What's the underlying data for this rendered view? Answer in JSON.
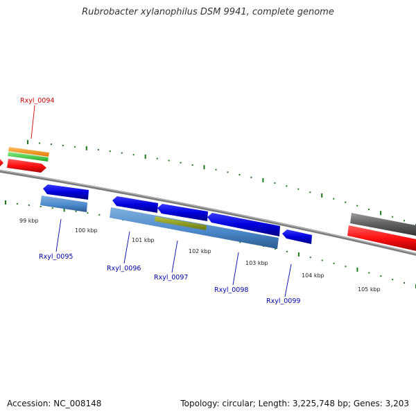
{
  "title": "Rubrobacter xylanophilus DSM 9941, complete genome",
  "footer": {
    "accession": "Accession: NC_008148",
    "summary": "Topology: circular; Length: 3,225,748 bp; Genes: 3,203"
  },
  "colors": {
    "backbone": "#8a8a8a",
    "tick": "#1a7a1a",
    "forward_gene": "#0000dd",
    "reverse_gene": "#4a86c8",
    "orange_feature": "#ff9900",
    "green_feature": "#33cc33",
    "red_feature": "#ff1111",
    "olive_feature": "#8a9a22",
    "gray_feature": "#606060",
    "label_red": "#cc0000",
    "label_blue": "#0000aa"
  },
  "scale": {
    "unit": "kbp",
    "labels": [
      "99 kbp",
      "100 kbp",
      "101 kbp",
      "102 kbp",
      "103 kbp",
      "104 kbp",
      "105 kbp"
    ]
  },
  "genes": [
    {
      "name": "Rxyl_0094",
      "color": "label_red"
    },
    {
      "name": "Rxyl_0095",
      "color": "label_blue"
    },
    {
      "name": "Rxyl_0096",
      "color": "label_blue"
    },
    {
      "name": "Rxyl_0097",
      "color": "label_blue"
    },
    {
      "name": "Rxyl_0098",
      "color": "label_blue"
    },
    {
      "name": "Rxyl_0099",
      "color": "label_blue"
    }
  ]
}
